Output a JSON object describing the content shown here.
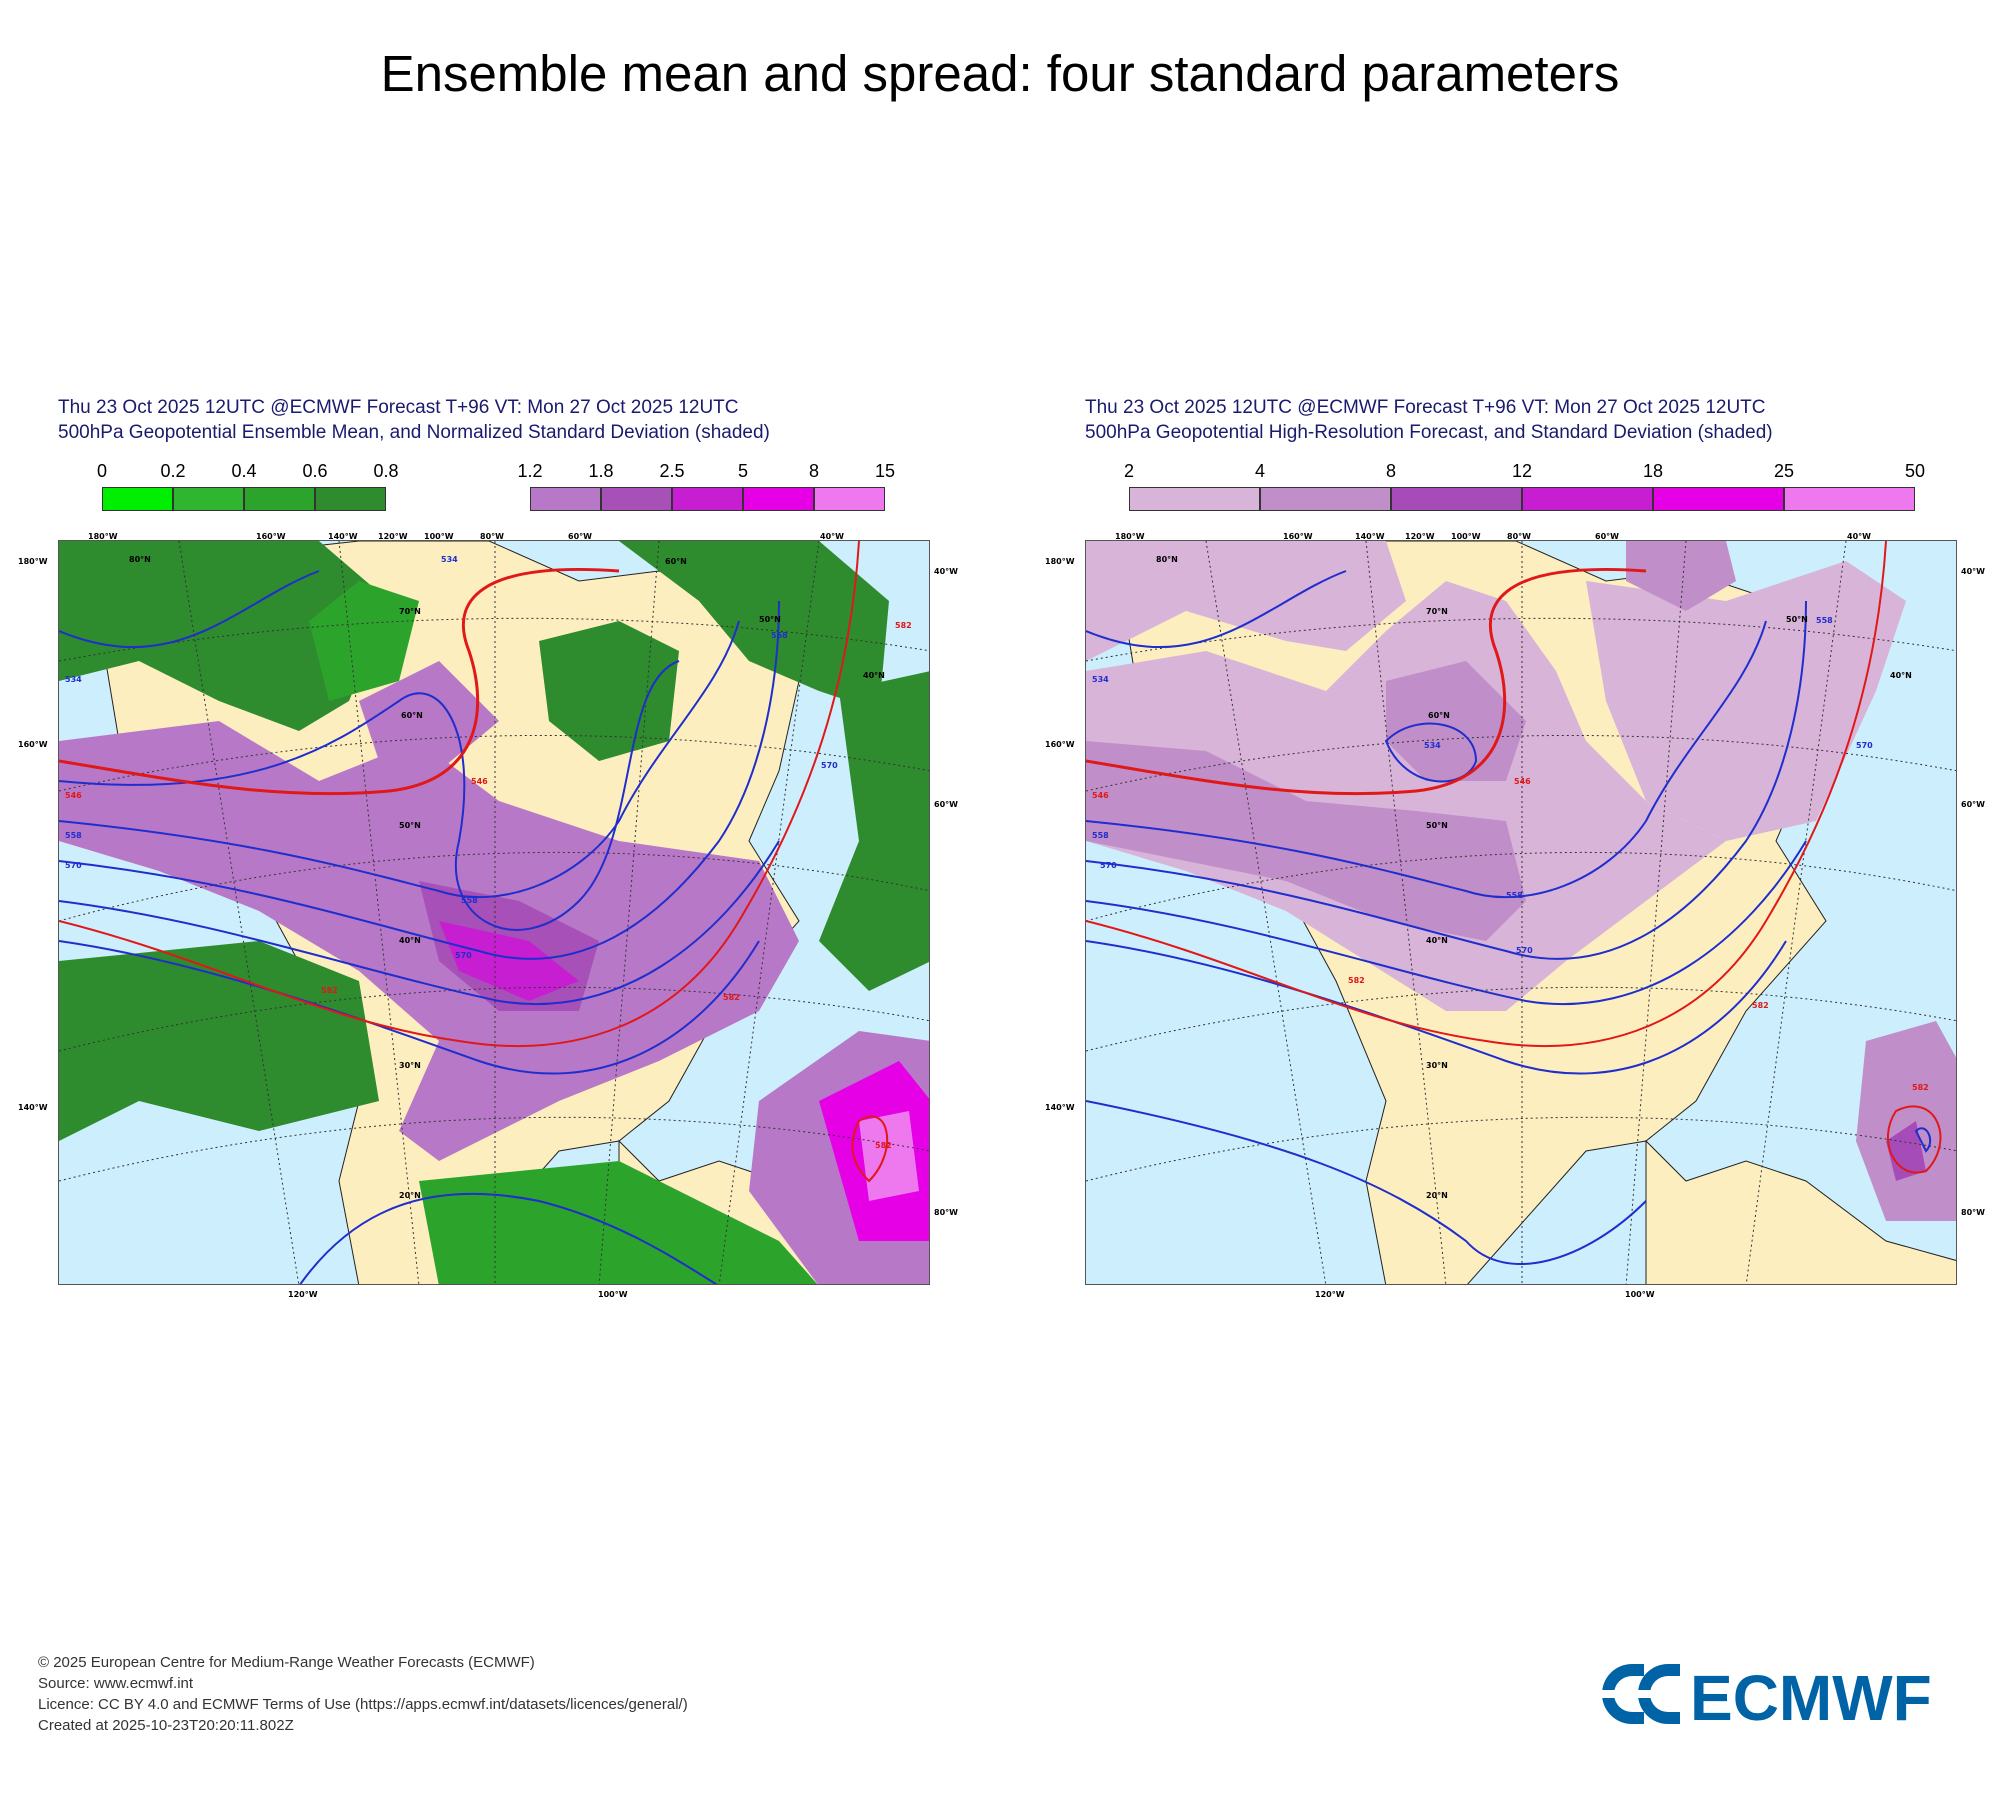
{
  "page": {
    "title": "Ensemble mean and spread: four standard parameters"
  },
  "panels": [
    {
      "header_line1": "Thu 23 Oct 2025 12UTC @ECMWF Forecast T+96 VT: Mon 27 Oct 2025 12UTC",
      "header_line2": "500hPa Geopotential Ensemble Mean, and Normalized Standard Deviation (shaded)",
      "legend_green": {
        "ticks": [
          "0",
          "0.2",
          "0.4",
          "0.6",
          "0.8"
        ],
        "colors": [
          "#00ee00",
          "#2fb52f",
          "#2ca42c",
          "#2e8b2e"
        ]
      },
      "legend_purple": {
        "ticks": [
          "1.2",
          "1.8",
          "2.5",
          "5",
          "8",
          "15"
        ],
        "colors": [
          "#b878c8",
          "#a650b8",
          "#c81ed2",
          "#e600e6",
          "#ee78ee"
        ]
      },
      "contour_labels": [
        "534",
        "546",
        "558",
        "570",
        "582",
        "558",
        "570",
        "582",
        "546",
        "558",
        "570",
        "534",
        "582"
      ],
      "lon_top": [
        "180°W",
        "160°W",
        "140°W",
        "120°W",
        "100°W",
        "80°W",
        "60°W",
        "40°W"
      ],
      "lon_bottom": [
        "120°W",
        "100°W"
      ],
      "lat_left": [
        "180°W",
        "160°W",
        "140°W"
      ],
      "lat_right": [
        "40°W",
        "60°W",
        "80°W"
      ],
      "lat_inner": [
        "80°N",
        "70°N",
        "60°N",
        "50°N",
        "40°N",
        "30°N",
        "20°N",
        "60°N",
        "50°N",
        "40°N"
      ]
    },
    {
      "header_line1": "Thu 23 Oct 2025 12UTC @ECMWF Forecast T+96 VT: Mon 27 Oct 2025 12UTC",
      "header_line2": "500hPa Geopotential High-Resolution Forecast, and Standard Deviation (shaded)",
      "legend": {
        "ticks": [
          "2",
          "4",
          "8",
          "12",
          "18",
          "25",
          "50"
        ],
        "colors": [
          "#d8b4d8",
          "#c08ec8",
          "#a64cb8",
          "#c81ed2",
          "#e600e6",
          "#ee78ee"
        ]
      },
      "contour_labels": [
        "534",
        "546",
        "558",
        "570",
        "534",
        "546",
        "558",
        "570",
        "582",
        "558",
        "570",
        "582",
        "582"
      ],
      "lon_top": [
        "180°W",
        "160°W",
        "140°W",
        "120°W",
        "100°W",
        "80°W",
        "60°W",
        "40°W"
      ],
      "lon_bottom": [
        "120°W",
        "100°W"
      ],
      "lat_left": [
        "180°W",
        "160°W",
        "140°W"
      ],
      "lat_right": [
        "40°W",
        "60°W",
        "80°W"
      ],
      "lat_inner": [
        "80°N",
        "70°N",
        "60°N",
        "50°N",
        "40°N",
        "30°N",
        "20°N",
        "50°N",
        "40°N"
      ]
    }
  ],
  "footer": {
    "copyright": "© 2025 European Centre for Medium-Range Weather Forecasts (ECMWF)",
    "source": "Source: www.ecmwf.int",
    "licence": "Licence: CC BY 4.0 and ECMWF Terms of Use (https://apps.ecmwf.int/datasets/licences/general/)",
    "created": "Created at 2025-10-23T20:20:11.802Z"
  },
  "logo": {
    "text": "ECMWF",
    "color": "#0063a6"
  },
  "colors": {
    "ocean": "#cdeefc",
    "land": "#fdeec0",
    "contour_blue": "#1f2ecc",
    "contour_red": "#e01818"
  }
}
